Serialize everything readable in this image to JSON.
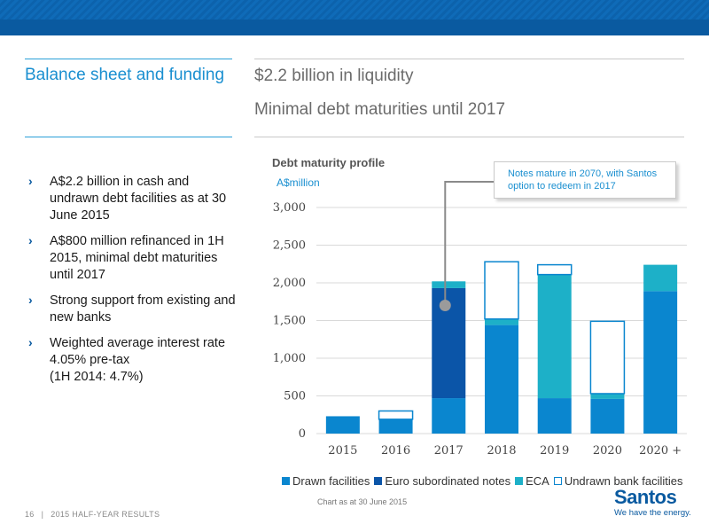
{
  "header": {
    "section_title": "Balance sheet and funding",
    "headline_1": "$2.2 billion in liquidity",
    "headline_2": "Minimal debt maturities until 2017"
  },
  "bullets": [
    "A$2.2 billion in cash and undrawn debt facilities as at 30 June 2015",
    "A$800 million refinanced in 1H 2015, minimal debt maturities until 2017",
    "Strong support from existing and new banks",
    "Weighted average interest rate 4.05% pre-tax\n(1H 2014: 4.7%)"
  ],
  "bullet_glyph": "›",
  "chart_data": {
    "type": "bar",
    "stacked": true,
    "title": "Debt maturity profile",
    "ylabel": "A$million",
    "xlabel": "",
    "categories": [
      "2015",
      "2016",
      "2017",
      "2018",
      "2019",
      "2020",
      "2020 +"
    ],
    "ylim": [
      0,
      3000
    ],
    "yticks": [
      0,
      500,
      1000,
      1500,
      2000,
      2500,
      3000
    ],
    "ytick_labels": [
      "0",
      "500",
      "1,000",
      "1,500",
      "2,000",
      "2,500",
      "3,000"
    ],
    "grid": true,
    "legend_position": "bottom",
    "series": [
      {
        "name": "Drawn facilities",
        "color": "#0a86cf",
        "outline": false,
        "values": [
          230,
          190,
          470,
          1440,
          470,
          460,
          1890
        ]
      },
      {
        "name": "Euro subordinated notes",
        "color": "#0b55a8",
        "outline": false,
        "values": [
          0,
          0,
          1460,
          0,
          0,
          0,
          0
        ]
      },
      {
        "name": "ECA",
        "color": "#1db0c8",
        "outline": false,
        "values": [
          0,
          0,
          90,
          80,
          1640,
          70,
          350
        ]
      },
      {
        "name": "Undrawn bank facilities",
        "color": "#ffffff",
        "stroke": "#0a86cf",
        "outline": true,
        "values": [
          0,
          110,
          0,
          760,
          130,
          960,
          0
        ]
      }
    ],
    "annotation": {
      "text": "Notes mature in 2070, with Santos option to redeem in 2017",
      "category": "2017",
      "value": 1700
    }
  },
  "footnote": "Chart as at 30 June 2015",
  "footer": {
    "page": "16",
    "separator": "|",
    "label": "2015 HALF-YEAR RESULTS"
  },
  "logo": {
    "name": "Santos",
    "tagline": "We have the energy."
  },
  "colors": {
    "brand_blue": "#0a5aa0",
    "accent": "#1a8fd0"
  }
}
